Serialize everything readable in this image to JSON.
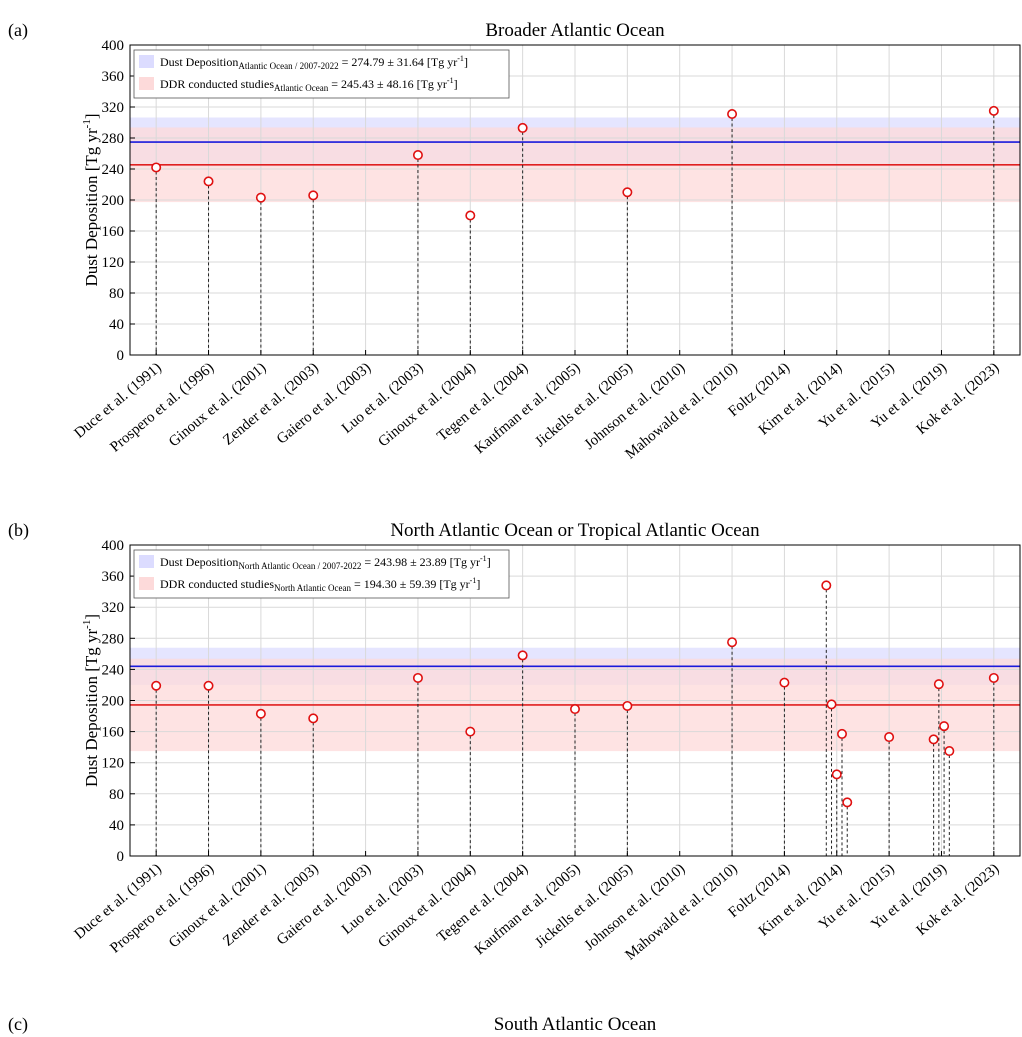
{
  "chart_data": [
    {
      "panel_label": "(a)",
      "title": "Broader Atlantic Ocean",
      "type": "scatter",
      "ylabel": "Dust Deposition [Tg yr-1]",
      "ylabel_main": "Dust Deposition [Tg yr",
      "ylabel_sup": "-1",
      "ylabel_close": "]",
      "ylim": [
        0,
        400
      ],
      "yticks": [
        0,
        40,
        80,
        120,
        160,
        200,
        240,
        280,
        320,
        360,
        400
      ],
      "grid": true,
      "legend_position": "top-left",
      "categories": [
        "Duce et al. (1991)",
        "Prospero et al. (1996)",
        "Ginoux et al. (2001)",
        "Zender et al. (2003)",
        "Gaiero et al. (2003)",
        "Luo et al. (2003)",
        "Ginoux et al. (2004)",
        "Tegen et al. (2004)",
        "Kaufman et al. (2005)",
        "Jickells et al. (2005)",
        "Johnson et al. (2010)",
        "Mahowald et al. (2010)",
        "Foltz (2014)",
        "Kim et al. (2014)",
        "Yu et al. (2015)",
        "Yu et al. (2019)",
        "Kok et al. (2023)"
      ],
      "points": [
        {
          "x": 0,
          "y": 242
        },
        {
          "x": 1,
          "y": 224
        },
        {
          "x": 2,
          "y": 203
        },
        {
          "x": 3,
          "y": 206
        },
        {
          "x": 5,
          "y": 258
        },
        {
          "x": 6,
          "y": 180
        },
        {
          "x": 7,
          "y": 293
        },
        {
          "x": 9,
          "y": 210
        },
        {
          "x": 11,
          "y": 311
        },
        {
          "x": 16,
          "y": 315
        }
      ],
      "lines": [
        {
          "name": "Dust Deposition",
          "subscript": "Atlantic Ocean / 2007-2022",
          "value_text": "= 274.79 ± 31.64 [Tg yr",
          "value_sup": "-1",
          "value_close": "]",
          "mean": 274.79,
          "sd": 31.64,
          "color": "#1a1adb",
          "band_color": "#dcdcff"
        },
        {
          "name": "DDR conducted studies",
          "subscript": "Atlantic Ocean",
          "value_text": "= 245.43 ± 48.16 [Tg yr",
          "value_sup": "-1",
          "value_close": "]",
          "mean": 245.43,
          "sd": 48.16,
          "color": "#e02020",
          "band_color": "#fddada"
        }
      ]
    },
    {
      "panel_label": "(b)",
      "title": "North Atlantic Ocean or Tropical Atlantic Ocean",
      "type": "scatter",
      "ylabel": "Dust Deposition [Tg yr-1]",
      "ylabel_main": "Dust Deposition [Tg yr",
      "ylabel_sup": "-1",
      "ylabel_close": "]",
      "ylim": [
        0,
        400
      ],
      "yticks": [
        0,
        40,
        80,
        120,
        160,
        200,
        240,
        280,
        320,
        360,
        400
      ],
      "grid": true,
      "legend_position": "top-left",
      "categories": [
        "Duce et al. (1991)",
        "Prospero et al. (1996)",
        "Ginoux et al. (2001)",
        "Zender et al. (2003)",
        "Gaiero et al. (2003)",
        "Luo et al. (2003)",
        "Ginoux et al. (2004)",
        "Tegen et al. (2004)",
        "Kaufman et al. (2005)",
        "Jickells et al. (2005)",
        "Johnson et al. (2010)",
        "Mahowald et al. (2010)",
        "Foltz (2014)",
        "Kim et al. (2014)",
        "Yu et al. (2015)",
        "Yu et al. (2019)",
        "Kok et al. (2023)"
      ],
      "points": [
        {
          "x": 0,
          "y": 219
        },
        {
          "x": 1,
          "y": 219
        },
        {
          "x": 2,
          "y": 183
        },
        {
          "x": 3,
          "y": 177
        },
        {
          "x": 5,
          "y": 229
        },
        {
          "x": 6,
          "y": 160
        },
        {
          "x": 7,
          "y": 258
        },
        {
          "x": 8,
          "y": 189
        },
        {
          "x": 9,
          "y": 193
        },
        {
          "x": 11,
          "y": 275
        },
        {
          "x": 12,
          "y": 223
        },
        {
          "x": 12.8,
          "y": 348
        },
        {
          "x": 12.9,
          "y": 195
        },
        {
          "x": 13.0,
          "y": 105
        },
        {
          "x": 13.1,
          "y": 157
        },
        {
          "x": 13.2,
          "y": 69
        },
        {
          "x": 14,
          "y": 153
        },
        {
          "x": 14.85,
          "y": 150
        },
        {
          "x": 14.95,
          "y": 221
        },
        {
          "x": 15.05,
          "y": 167
        },
        {
          "x": 15.15,
          "y": 135
        },
        {
          "x": 16,
          "y": 229
        }
      ],
      "lines": [
        {
          "name": "Dust Deposition",
          "subscript": "North Atlantic Ocean / 2007-2022",
          "value_text": "= 243.98 ± 23.89 [Tg yr",
          "value_sup": "-1",
          "value_close": "]",
          "mean": 243.98,
          "sd": 23.89,
          "color": "#1a1adb",
          "band_color": "#dcdcff"
        },
        {
          "name": "DDR conducted studies",
          "subscript": "North Atlantic Ocean",
          "value_text": "= 194.30 ± 59.39 [Tg yr",
          "value_sup": "-1",
          "value_close": "]",
          "mean": 194.3,
          "sd": 59.39,
          "color": "#e02020",
          "band_color": "#fddada"
        }
      ]
    },
    {
      "panel_label": "(c)",
      "title": "South Atlantic Ocean"
    }
  ]
}
